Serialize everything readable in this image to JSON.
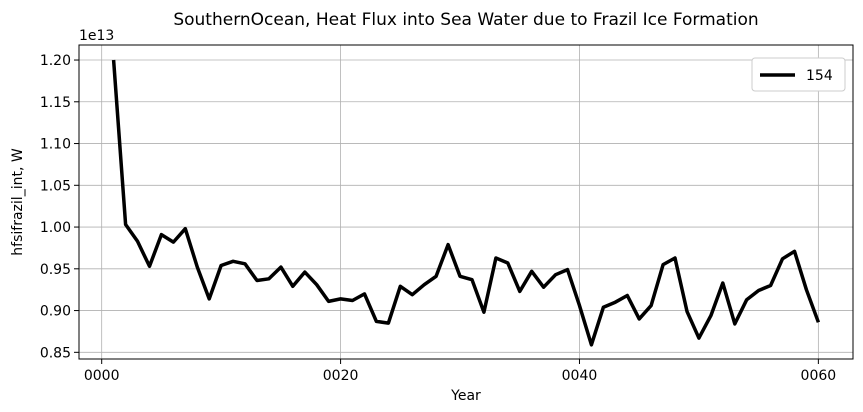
{
  "chart_data": {
    "type": "line",
    "title": "SouthernOcean, Heat Flux into Sea Water due to Frazil Ice Formation",
    "xlabel": "Year",
    "ylabel": "hfsifrazil_int, W",
    "offset_label": "1e13",
    "scale": 10000000000000.0,
    "xlim": [
      -1.9,
      62.9
    ],
    "ylim": [
      0.842,
      1.218
    ],
    "xticks": [
      0,
      20,
      40,
      60
    ],
    "xtick_labels": [
      "0000",
      "0020",
      "0040",
      "0060"
    ],
    "yticks": [
      0.85,
      0.9,
      0.95,
      1.0,
      1.05,
      1.1,
      1.15,
      1.2
    ],
    "ytick_labels": [
      "0.85",
      "0.90",
      "0.95",
      "1.00",
      "1.05",
      "1.10",
      "1.15",
      "1.20"
    ],
    "grid": true,
    "legend_position": "top-right",
    "series": [
      {
        "name": "154",
        "color": "#000000",
        "x": [
          1,
          2,
          3,
          4,
          5,
          6,
          7,
          8,
          9,
          10,
          11,
          12,
          13,
          14,
          15,
          16,
          17,
          18,
          19,
          20,
          21,
          22,
          23,
          24,
          25,
          26,
          27,
          28,
          29,
          30,
          31,
          32,
          33,
          34,
          35,
          36,
          37,
          38,
          39,
          40,
          41,
          42,
          43,
          44,
          45,
          46,
          47,
          48,
          49,
          50,
          51,
          52,
          53,
          54,
          55,
          56,
          57,
          58,
          59,
          60
        ],
        "y": [
          1.2,
          1.003,
          0.983,
          0.953,
          0.991,
          0.982,
          0.998,
          0.952,
          0.914,
          0.954,
          0.959,
          0.956,
          0.936,
          0.938,
          0.952,
          0.929,
          0.946,
          0.931,
          0.911,
          0.914,
          0.912,
          0.92,
          0.887,
          0.885,
          0.929,
          0.919,
          0.931,
          0.941,
          0.979,
          0.941,
          0.937,
          0.898,
          0.963,
          0.957,
          0.923,
          0.947,
          0.928,
          0.943,
          0.949,
          0.906,
          0.859,
          0.904,
          0.91,
          0.918,
          0.89,
          0.906,
          0.955,
          0.963,
          0.899,
          0.867,
          0.894,
          0.933,
          0.884,
          0.913,
          0.924,
          0.93,
          0.962,
          0.971,
          0.925,
          0.886
        ]
      }
    ]
  }
}
